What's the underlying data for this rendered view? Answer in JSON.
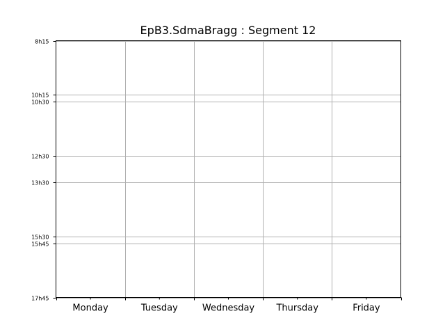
{
  "chart_data": {
    "type": "table",
    "title": "EpB3.SdmaBragg : Segment 12",
    "xlabel": "",
    "ylabel": "",
    "categories": [
      "Monday",
      "Tuesday",
      "Wednesday",
      "Thursday",
      "Friday"
    ],
    "time_ticks": [
      {
        "label": "8h15",
        "hours": 8.25
      },
      {
        "label": "10h15",
        "hours": 10.25
      },
      {
        "label": "10h30",
        "hours": 10.5
      },
      {
        "label": "12h30",
        "hours": 12.5
      },
      {
        "label": "13h30",
        "hours": 13.5
      },
      {
        "label": "15h30",
        "hours": 15.5
      },
      {
        "label": "15h45",
        "hours": 15.75
      },
      {
        "label": "17h45",
        "hours": 17.75
      }
    ],
    "ylim": [
      8.25,
      17.75
    ],
    "y_inverted": true,
    "grid": true,
    "events": []
  }
}
